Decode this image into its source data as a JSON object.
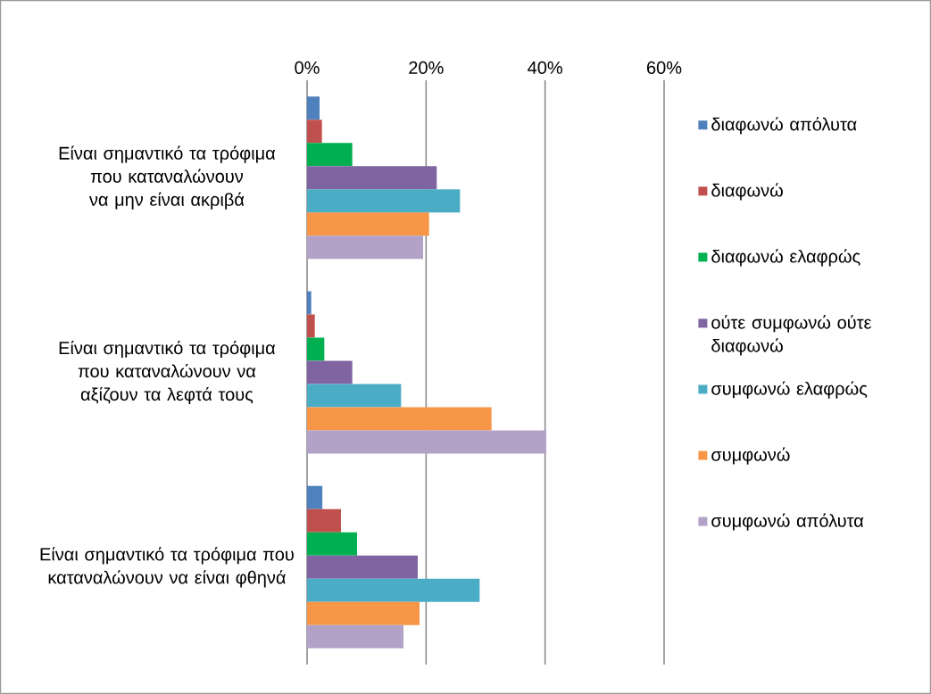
{
  "chart_data": {
    "type": "bar",
    "orientation": "horizontal",
    "categories": [
      "Είναι σημαντικό τα τρόφιμα που καταναλώνουν να μην είναι ακριβά",
      "Είναι σημαντικό τα τρόφιμα που καταναλώνουν να αξίζουν τα λεφτά τους",
      "Είναι σημαντικό τα τρόφιμα που καταναλώνουν να είναι φθηνά"
    ],
    "series": [
      {
        "name": "διαφωνώ απόλυτα",
        "color": "#4f81bd",
        "values": [
          2.1,
          0.7,
          2.6
        ]
      },
      {
        "name": "διαφωνώ",
        "color": "#c0504d",
        "values": [
          2.5,
          1.3,
          5.7
        ]
      },
      {
        "name": "διαφωνώ ελαφρώς",
        "color": "#00b050",
        "values": [
          7.6,
          2.9,
          8.4
        ]
      },
      {
        "name": "ούτε συμφωνώ ούτε διαφωνώ",
        "color": "#8064a2",
        "values": [
          21.8,
          7.6,
          18.6
        ]
      },
      {
        "name": "συμφωνώ ελαφρώς",
        "color": "#4bacc6",
        "values": [
          25.7,
          15.8,
          29.0
        ]
      },
      {
        "name": "συμφωνώ",
        "color": "#f79646",
        "values": [
          20.5,
          31.0,
          18.9
        ]
      },
      {
        "name": "συμφωνώ απόλυτα",
        "color": "#b2a2c7",
        "values": [
          19.5,
          40.2,
          16.2
        ]
      }
    ],
    "xlim": [
      0,
      60
    ],
    "xticks": [
      {
        "value": 0,
        "label": "0%"
      },
      {
        "value": 20,
        "label": "20%"
      },
      {
        "value": 40,
        "label": "40%"
      },
      {
        "value": 60,
        "label": "60%"
      }
    ],
    "grid": "x",
    "legend": "right"
  }
}
